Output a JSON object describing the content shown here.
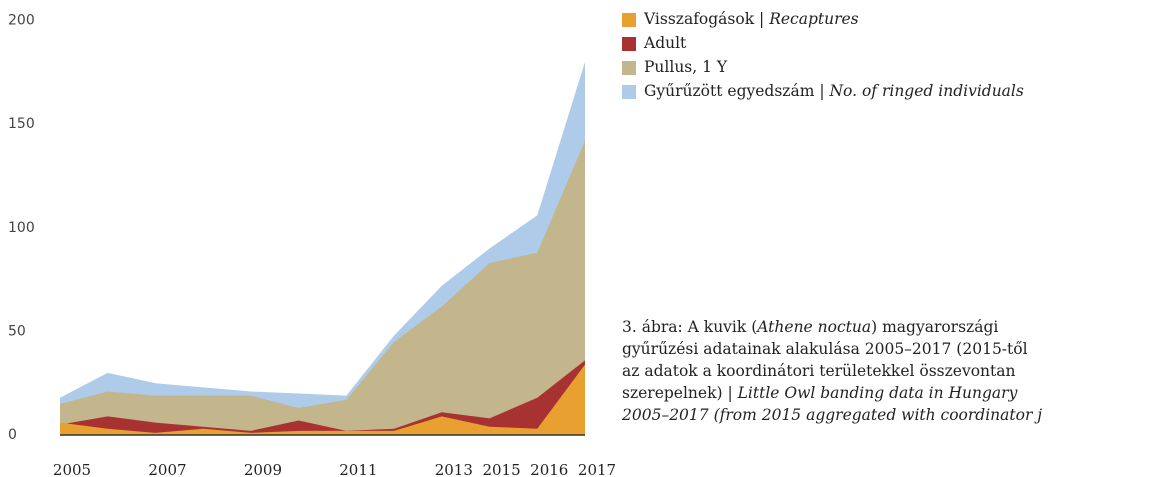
{
  "chart_data": {
    "type": "area",
    "categories": [
      "2005",
      null,
      "2007",
      null,
      "2009",
      null,
      "2011",
      null,
      "2013",
      "2015",
      "2016",
      "2017"
    ],
    "series": [
      {
        "name": "Visszafogások | Recaptures",
        "color": "#e8a030",
        "values": [
          6,
          3,
          1,
          3,
          1,
          2,
          2,
          2,
          9,
          4,
          3,
          34
        ]
      },
      {
        "name": "Adult",
        "color": "#a83232",
        "values": [
          5,
          9,
          6,
          4,
          2,
          7,
          2,
          3,
          11,
          8,
          18,
          36
        ]
      },
      {
        "name": "Pullus, 1 Y",
        "color": "#c4b68c",
        "values": [
          15,
          21,
          19,
          19,
          19,
          13,
          17,
          45,
          62,
          83,
          88,
          142
        ]
      },
      {
        "name": "Gyűrűzött egyedszám | No. of ringed individuals",
        "color": "#aecbea",
        "values": [
          18,
          30,
          25,
          23,
          21,
          20,
          19,
          48,
          72,
          90,
          106,
          180
        ]
      }
    ],
    "ylim": [
      0,
      200
    ],
    "yticks": [
      0,
      50,
      100,
      150,
      200
    ],
    "caption": [
      [
        "3. ábra: A kuvik (",
        "Athene noctua",
        ") magyarországi"
      ],
      [
        "gyűrűzési adatainak alakulása 2005–2017 (2015-től"
      ],
      [
        "az adatok a koordinátori területekkel összevontan"
      ],
      [
        "szerepelnek) | ",
        "Little Owl banding data in Hungary"
      ],
      [
        "",
        "2005–2017 (from 2015 aggregated with coordinator j"
      ]
    ]
  }
}
